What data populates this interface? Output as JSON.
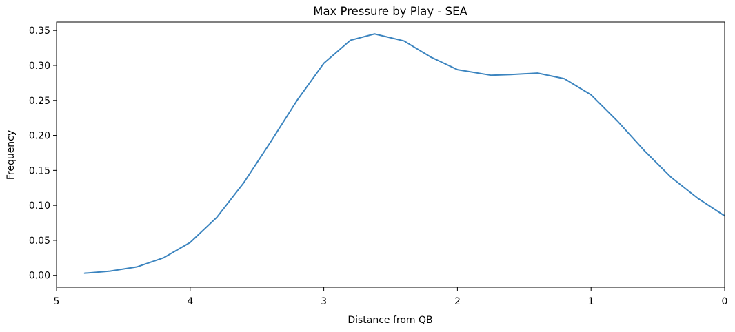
{
  "chart_data": {
    "type": "line",
    "title": "Max Pressure by Play - SEA",
    "xlabel": "Distance from QB",
    "ylabel": "Frequency",
    "xlim": [
      5,
      0
    ],
    "ylim": [
      -0.017,
      0.362
    ],
    "x_ticks": [
      5,
      4,
      3,
      2,
      1,
      0
    ],
    "x_tick_labels": [
      "5",
      "4",
      "3",
      "2",
      "1",
      "0"
    ],
    "y_ticks": [
      0.0,
      0.05,
      0.1,
      0.15,
      0.2,
      0.25,
      0.3,
      0.35
    ],
    "y_tick_labels": [
      "0.00",
      "0.05",
      "0.10",
      "0.15",
      "0.20",
      "0.25",
      "0.30",
      "0.35"
    ],
    "grid": false,
    "series": [
      {
        "color": "#3b84bf",
        "x": [
          4.79,
          4.6,
          4.4,
          4.2,
          4.0,
          3.8,
          3.6,
          3.4,
          3.2,
          3.0,
          2.8,
          2.62,
          2.4,
          2.2,
          2.0,
          1.75,
          1.6,
          1.4,
          1.2,
          1.0,
          0.8,
          0.6,
          0.4,
          0.2,
          0.0
        ],
        "y": [
          0.003,
          0.006,
          0.012,
          0.025,
          0.047,
          0.083,
          0.132,
          0.19,
          0.25,
          0.303,
          0.336,
          0.345,
          0.335,
          0.312,
          0.294,
          0.286,
          0.287,
          0.289,
          0.281,
          0.258,
          0.22,
          0.178,
          0.14,
          0.11,
          0.085
        ]
      }
    ]
  }
}
